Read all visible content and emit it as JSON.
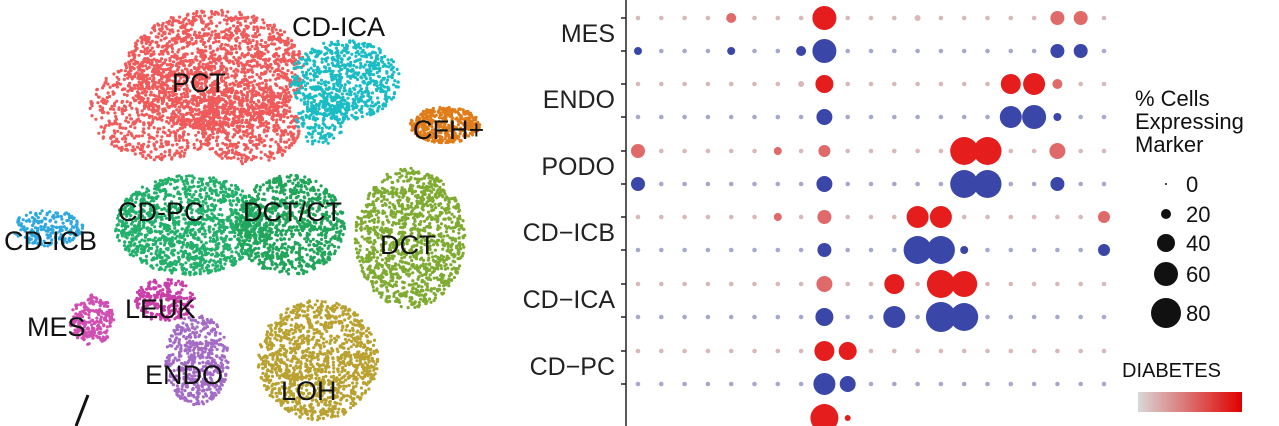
{
  "umap": {
    "clusters": [
      {
        "name": "PCT",
        "color": "#ef5a5a"
      },
      {
        "name": "CD-ICA",
        "color": "#1bbcc4"
      },
      {
        "name": "CFH+",
        "color": "#e07d1a"
      },
      {
        "name": "CD-ICB",
        "color": "#2fa7df"
      },
      {
        "name": "CD-PC",
        "color": "#22b06a"
      },
      {
        "name": "DCT/CT",
        "color": "#21a55a"
      },
      {
        "name": "DCT",
        "color": "#7fab32"
      },
      {
        "name": "MES",
        "color": "#d04fb2"
      },
      {
        "name": "LEUK",
        "color": "#c93ea9"
      },
      {
        "name": "ENDO",
        "color": "#a36bc4"
      },
      {
        "name": "LOH",
        "color": "#b9a231"
      }
    ]
  },
  "chart_data": {
    "type": "dotplot",
    "rows": [
      {
        "label": "MES"
      },
      {
        "label": "ENDO"
      },
      {
        "label": "PODO"
      },
      {
        "label": "CD−ICB"
      },
      {
        "label": "CD−ICA"
      },
      {
        "label": "CD−PC"
      }
    ],
    "columns": 21,
    "dots_red": [
      [
        0,
        2
      ],
      [
        1,
        1
      ],
      [
        2,
        1
      ],
      [
        3,
        1
      ],
      [
        4,
        12
      ],
      [
        5,
        1
      ],
      [
        6,
        2
      ],
      [
        7,
        8
      ],
      [
        8,
        55
      ],
      [
        9,
        1
      ],
      [
        10,
        1
      ],
      [
        11,
        1
      ],
      [
        12,
        1
      ],
      [
        13,
        1
      ],
      [
        14,
        1
      ],
      [
        15,
        1
      ],
      [
        16,
        1
      ],
      [
        17,
        2
      ],
      [
        18,
        2
      ],
      [
        19,
        15
      ],
      [
        20,
        15
      ]
    ],
    "legend": {
      "size_title": "% Cells Expressing Marker",
      "size_values": [
        "0",
        "20",
        "40",
        "60",
        "80"
      ],
      "color_title": "DIABETES",
      "low_color": "#d9d9d9",
      "high_color": "#e00000",
      "blue_color": "#3b47a8"
    }
  }
}
